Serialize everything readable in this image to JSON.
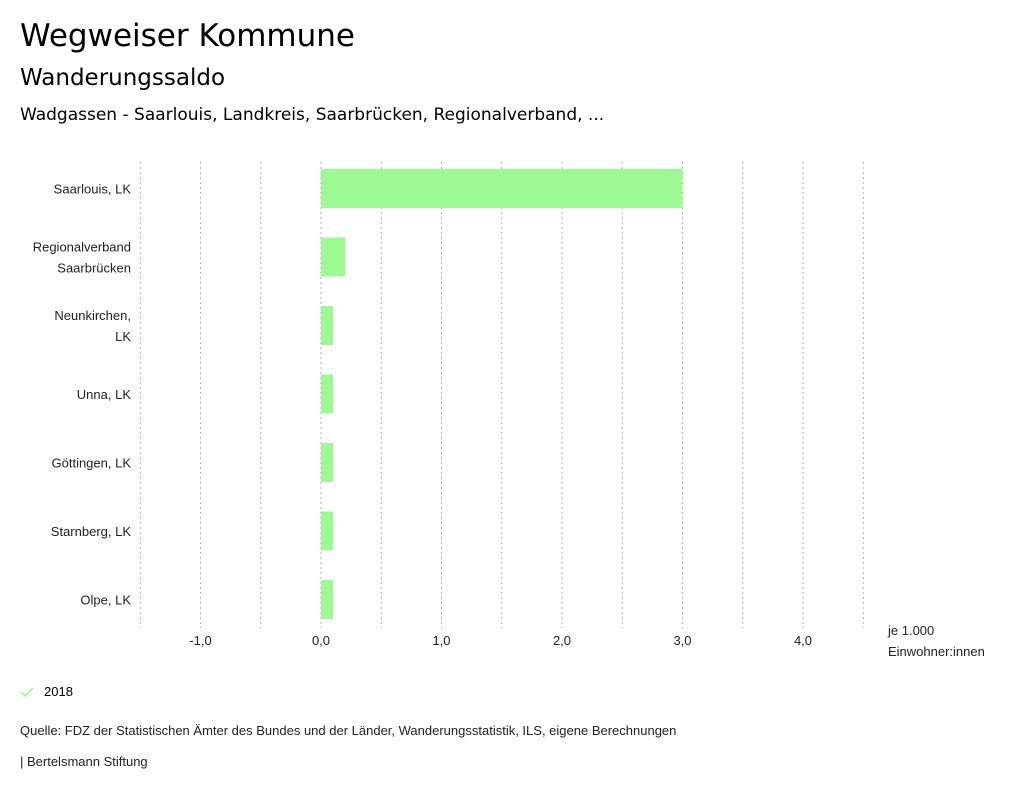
{
  "header": {
    "title": "Wegweiser Kommune",
    "subtitle": "Wanderungssaldo",
    "region": "Wadgassen - Saarlouis, Landkreis, Saarbrücken, Regionalverband, ..."
  },
  "chart_data": {
    "type": "bar",
    "orientation": "horizontal",
    "title": "Wanderungssaldo",
    "categories": [
      [
        "Saarlouis, LK"
      ],
      [
        "Regionalverband",
        "Saarbrücken"
      ],
      [
        "Neunkirchen,",
        "LK"
      ],
      [
        "Unna, LK"
      ],
      [
        "Göttingen, LK"
      ],
      [
        "Starnberg, LK"
      ],
      [
        "Olpe, LK"
      ]
    ],
    "series": [
      {
        "name": "2018",
        "color": "#9cf993",
        "values": [
          3.0,
          0.2,
          0.1,
          0.1,
          0.1,
          0.1,
          0.1
        ]
      }
    ],
    "xlim": [
      -1.5,
      4.5
    ],
    "xticks": [
      -1.0,
      0.0,
      1.0,
      2.0,
      3.0,
      4.0
    ],
    "xtick_labels": [
      "-1,0",
      "0,0",
      "1,0",
      "2,0",
      "3,0",
      "4,0"
    ],
    "gridlines_every": 0.5,
    "grid": true,
    "xlabel": [
      "je 1.000",
      "Einwohner:innen"
    ],
    "ylabel": "",
    "legend_position": "bottom-left"
  },
  "legend": {
    "label": "2018",
    "color": "#9cf993"
  },
  "footer": {
    "source": "Quelle: FDZ der Statistischen Ämter des Bundes und der Länder, Wanderungsstatistik, ILS, eigene Berechnungen",
    "credit": "| Bertelsmann Stiftung"
  }
}
